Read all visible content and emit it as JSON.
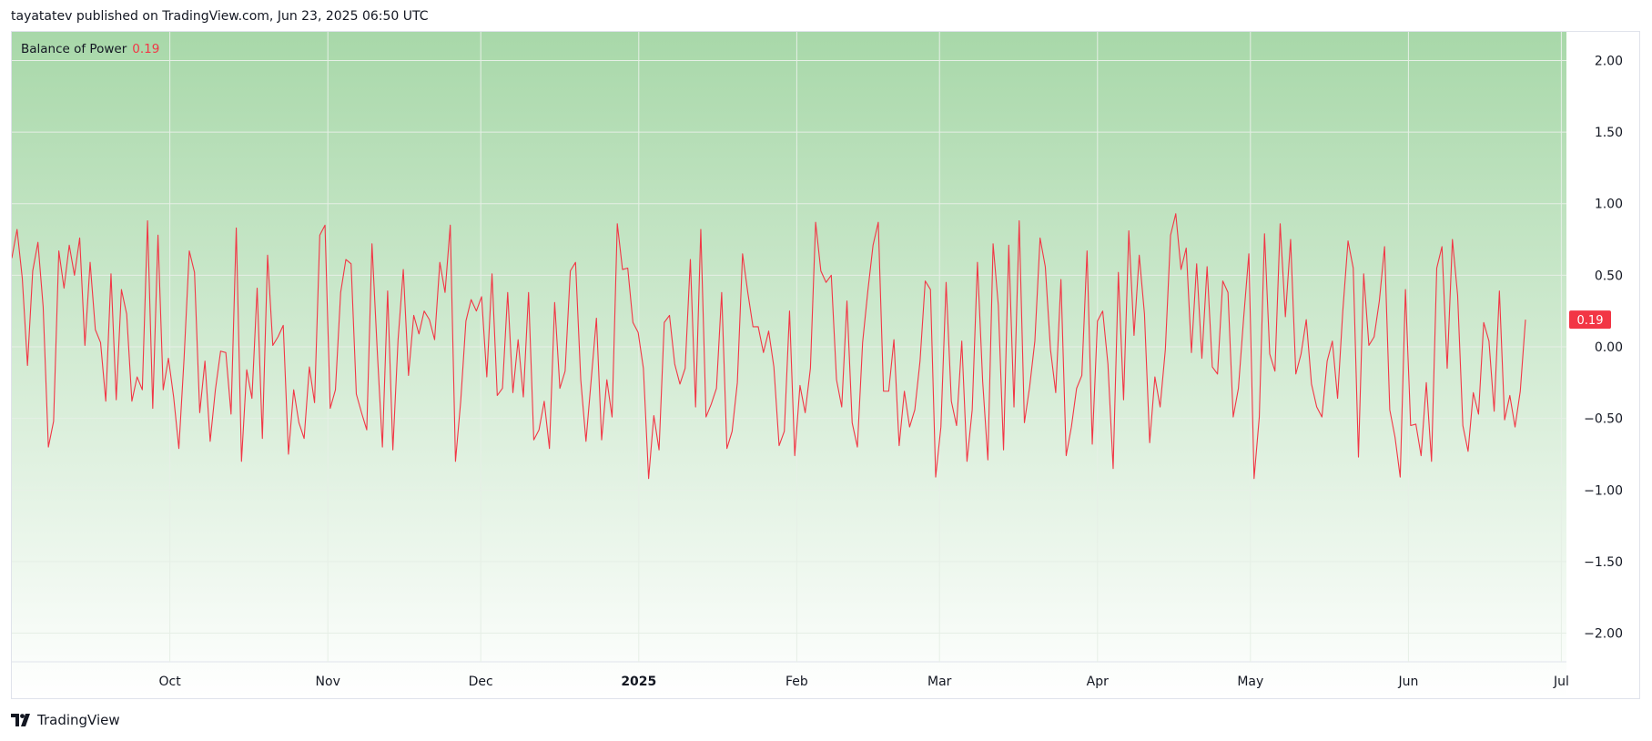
{
  "header": {
    "published_text": "tayatatev published on TradingView.com, Jun 23, 2025 06:50 UTC"
  },
  "legend": {
    "indicator_name": "Balance of Power",
    "value": "0.19"
  },
  "footer": {
    "brand": "TradingView",
    "logo_icon": "tradingview-logo-icon"
  },
  "colors": {
    "line": "#f23645",
    "bg_top": "#a8d8a9",
    "bg_bottom": "#ffffff",
    "grid": "#e6efe6",
    "price_label_bg": "#f23645"
  },
  "chart_data": {
    "type": "line",
    "indicator": "Balance of Power",
    "current_value": 0.19,
    "current_value_label": "0.19",
    "x_range": [
      "2024-08-31",
      "2025-07-02"
    ],
    "ylim": [
      -2.2,
      2.2
    ],
    "y_ticks": [
      {
        "value": 2.0,
        "label": "2.00"
      },
      {
        "value": 1.5,
        "label": "1.50"
      },
      {
        "value": 1.0,
        "label": "1.00"
      },
      {
        "value": 0.5,
        "label": "0.50"
      },
      {
        "value": 0.0,
        "label": "0.00"
      },
      {
        "value": -0.5,
        "label": "−0.50"
      },
      {
        "value": -1.0,
        "label": "−1.00"
      },
      {
        "value": -1.5,
        "label": "−1.50"
      },
      {
        "value": -2.0,
        "label": "−2.00"
      }
    ],
    "x_ticks": [
      {
        "date": "2024-10-01",
        "label": "Oct",
        "bold": false
      },
      {
        "date": "2024-11-01",
        "label": "Nov",
        "bold": false
      },
      {
        "date": "2024-12-01",
        "label": "Dec",
        "bold": false
      },
      {
        "date": "2025-01-01",
        "label": "2025",
        "bold": true
      },
      {
        "date": "2025-02-01",
        "label": "Feb",
        "bold": false
      },
      {
        "date": "2025-03-01",
        "label": "Mar",
        "bold": false
      },
      {
        "date": "2025-04-01",
        "label": "Apr",
        "bold": false
      },
      {
        "date": "2025-05-01",
        "label": "May",
        "bold": false
      },
      {
        "date": "2025-06-01",
        "label": "Jun",
        "bold": false
      },
      {
        "date": "2025-07-01",
        "label": "Jul",
        "bold": false
      }
    ],
    "grid": true,
    "values": [
      0.62,
      0.82,
      0.48,
      -0.13,
      0.53,
      0.73,
      0.28,
      -0.7,
      -0.52,
      0.67,
      0.41,
      0.71,
      0.5,
      0.76,
      0.01,
      0.59,
      0.12,
      0.03,
      -0.38,
      0.51,
      -0.37,
      0.4,
      0.23,
      -0.38,
      -0.21,
      -0.3,
      0.88,
      -0.43,
      0.78,
      -0.3,
      -0.08,
      -0.35,
      -0.71,
      -0.08,
      0.67,
      0.52,
      -0.46,
      -0.1,
      -0.66,
      -0.3,
      -0.03,
      -0.04,
      -0.47,
      0.83,
      -0.8,
      -0.16,
      -0.36,
      0.41,
      -0.64,
      0.64,
      0.01,
      0.07,
      0.15,
      -0.75,
      -0.3,
      -0.53,
      -0.64,
      -0.14,
      -0.39,
      0.78,
      0.85,
      -0.43,
      -0.3,
      0.38,
      0.61,
      0.58,
      -0.33,
      -0.46,
      -0.58,
      0.72,
      -0.02,
      -0.7,
      0.39,
      -0.72,
      0.05,
      0.54,
      -0.2,
      0.22,
      0.09,
      0.25,
      0.19,
      0.05,
      0.59,
      0.38,
      0.85,
      -0.8,
      -0.38,
      0.18,
      0.33,
      0.25,
      0.35,
      -0.21,
      0.51,
      -0.34,
      -0.29,
      0.38,
      -0.32,
      0.05,
      -0.35,
      0.38,
      -0.65,
      -0.58,
      -0.38,
      -0.71,
      0.31,
      -0.29,
      -0.17,
      0.53,
      0.59,
      -0.23,
      -0.66,
      -0.23,
      0.2,
      -0.65,
      -0.23,
      -0.49,
      0.86,
      0.54,
      0.55,
      0.17,
      0.1,
      -0.15,
      -0.92,
      -0.48,
      -0.72,
      0.17,
      0.22,
      -0.12,
      -0.26,
      -0.15,
      0.61,
      -0.42,
      0.82,
      -0.49,
      -0.4,
      -0.29,
      0.38,
      -0.71,
      -0.59,
      -0.25,
      0.65,
      0.38,
      0.14,
      0.14,
      -0.04,
      0.11,
      -0.14,
      -0.69,
      -0.59,
      0.25,
      -0.76,
      -0.27,
      -0.46,
      -0.15,
      0.87,
      0.53,
      0.45,
      0.5,
      -0.23,
      -0.42,
      0.32,
      -0.53,
      -0.7,
      0.03,
      0.39,
      0.71,
      0.87,
      -0.31,
      -0.31,
      0.05,
      -0.69,
      -0.31,
      -0.56,
      -0.44,
      -0.1,
      0.46,
      0.4,
      -0.91,
      -0.56,
      0.45,
      -0.38,
      -0.55,
      0.04,
      -0.8,
      -0.44,
      0.59,
      -0.24,
      -0.79,
      0.72,
      0.29,
      -0.72,
      0.71,
      -0.42,
      0.88,
      -0.53,
      -0.28,
      0.04,
      0.76,
      0.56,
      -0.02,
      -0.32,
      0.47,
      -0.76,
      -0.56,
      -0.29,
      -0.2,
      0.67,
      -0.68,
      0.18,
      0.25,
      -0.12,
      -0.85,
      0.52,
      -0.37,
      0.81,
      0.08,
      0.64,
      0.23,
      -0.67,
      -0.21,
      -0.42,
      -0.02,
      0.78,
      0.93,
      0.54,
      0.69,
      -0.04,
      0.58,
      -0.08,
      0.56,
      -0.14,
      -0.19,
      0.46,
      0.38,
      -0.49,
      -0.29,
      0.2,
      0.65,
      -0.92,
      -0.49,
      0.79,
      -0.05,
      -0.17,
      0.86,
      0.21,
      0.75,
      -0.19,
      -0.05,
      0.19,
      -0.26,
      -0.42,
      -0.49,
      -0.1,
      0.04,
      -0.36,
      0.25,
      0.74,
      0.55,
      -0.77,
      0.51,
      0.01,
      0.07,
      0.32,
      0.7,
      -0.44,
      -0.63,
      -0.91,
      0.4,
      -0.55,
      -0.54,
      -0.76,
      -0.25,
      -0.8,
      0.55,
      0.7,
      -0.15,
      0.75,
      0.36,
      -0.55,
      -0.73,
      -0.32,
      -0.47,
      0.17,
      0.04,
      -0.45,
      0.39,
      -0.51,
      -0.34,
      -0.56,
      -0.31,
      0.19
    ]
  }
}
